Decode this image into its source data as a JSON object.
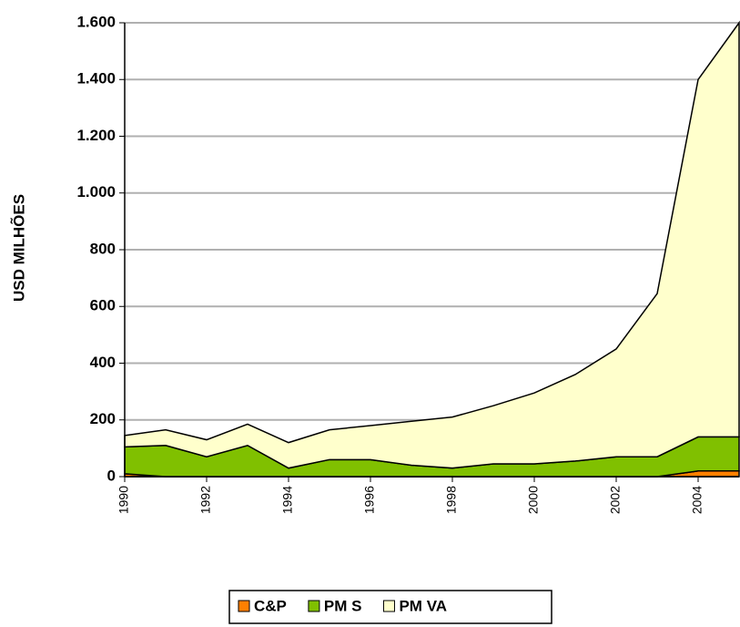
{
  "chart_data": {
    "type": "area",
    "y_label": "USD MILHÕES",
    "x": [
      1990,
      1991,
      1992,
      1993,
      1994,
      1995,
      1996,
      1997,
      1998,
      1999,
      2000,
      2001,
      2002,
      2003,
      2004,
      2005
    ],
    "series": [
      {
        "name": "C&P",
        "color": "#ff8000",
        "values": [
          10,
          0,
          0,
          0,
          0,
          0,
          0,
          0,
          0,
          0,
          0,
          0,
          0,
          0,
          20,
          20
        ]
      },
      {
        "name": "PM S",
        "color": "#80c000",
        "values": [
          95,
          110,
          70,
          110,
          30,
          60,
          60,
          40,
          30,
          45,
          45,
          55,
          70,
          70,
          120,
          120
        ]
      },
      {
        "name": "PM VA",
        "color": "#ffffcc",
        "values": [
          40,
          55,
          60,
          75,
          90,
          105,
          120,
          155,
          180,
          205,
          250,
          305,
          380,
          575,
          1260,
          1460
        ]
      }
    ],
    "stacked": true,
    "xlim": [
      1990,
      2005
    ],
    "xticks": [
      1990,
      1992,
      1994,
      1996,
      1998,
      2000,
      2002,
      2004
    ],
    "ylim": [
      0,
      1600
    ],
    "yticks": [
      0,
      200,
      400,
      600,
      800,
      {
        "value": 1000,
        "label": "1.000"
      },
      {
        "value": 1200,
        "label": "1.200"
      },
      {
        "value": 1400,
        "label": "1.400"
      },
      {
        "value": 1600,
        "label": "1.600"
      }
    ],
    "grid": true,
    "legend": "bottom"
  }
}
